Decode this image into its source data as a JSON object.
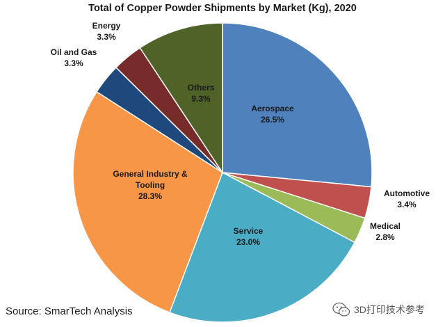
{
  "chart_data": {
    "type": "pie",
    "title": "Total of Copper Powder Shipments by Market (Kg), 2020",
    "slices": [
      {
        "name": "Aerospace",
        "percent_label": "26.5%",
        "value": 26.5,
        "color": "#4f81bd"
      },
      {
        "name": "Automotive",
        "percent_label": "3.4%",
        "value": 3.4,
        "color": "#c0504d"
      },
      {
        "name": "Medical",
        "percent_label": "2.8%",
        "value": 2.8,
        "color": "#9bbb59"
      },
      {
        "name": "Service",
        "percent_label": "23.0%",
        "value": 23.0,
        "color": "#4bacc6"
      },
      {
        "name": "General Industry & Tooling",
        "percent_label": "28.3%",
        "value": 28.3,
        "color": "#f79646"
      },
      {
        "name": "Oil and Gas",
        "percent_label": "3.3%",
        "value": 3.3,
        "color": "#1f497d"
      },
      {
        "name": "Energy",
        "percent_label": "3.3%",
        "value": 3.3,
        "color": "#772c2a"
      },
      {
        "name": "Others",
        "percent_label": "9.3%",
        "value": 9.3,
        "color": "#4f6228"
      }
    ]
  },
  "source": "Source: SmarTech Analysis",
  "watermark": "3D打印技术参考"
}
